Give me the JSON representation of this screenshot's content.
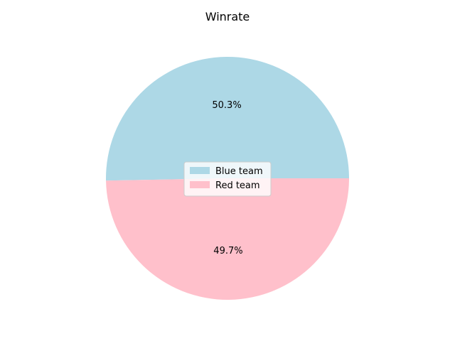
{
  "chart_data": {
    "type": "pie",
    "title": "Winrate",
    "slices": [
      {
        "label": "Blue team",
        "value": 50.3,
        "pct_label": "50.3%",
        "color": "#add8e6"
      },
      {
        "label": "Red team",
        "value": 49.7,
        "pct_label": "49.7%",
        "color": "#ffc0cb"
      }
    ],
    "legend_placement": "center"
  }
}
